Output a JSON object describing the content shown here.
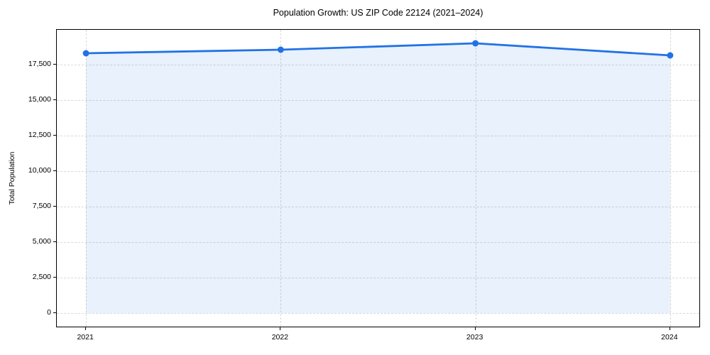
{
  "figure": {
    "title": "Population Growth: US ZIP Code 22124 (2021–2024)",
    "ylabel": "Total Population"
  },
  "chart_data": {
    "type": "line",
    "title": "Population Growth: US ZIP Code 22124 (2021–2024)",
    "xlabel": "",
    "ylabel": "Total Population",
    "categories": [
      "2021",
      "2022",
      "2023",
      "2024"
    ],
    "x": [
      2021,
      2022,
      2023,
      2024
    ],
    "series": [
      {
        "name": "Total Population",
        "values": [
          18300,
          18550,
          19000,
          18150
        ]
      }
    ],
    "markers": "circle",
    "area_fill": true,
    "fill_baseline": 0,
    "grid": true,
    "grid_style": "dashed",
    "legend": false,
    "xlim": [
      2020.85,
      2024.15
    ],
    "ylim": [
      -950,
      19950
    ],
    "yticks": [
      0,
      2500,
      5000,
      7500,
      10000,
      12500,
      15000,
      17500
    ],
    "ytick_labels": [
      "0",
      "2,500",
      "5,000",
      "7,500",
      "10,000",
      "12,500",
      "15,000",
      "17,500"
    ],
    "colors": {
      "line": "#2272e5",
      "marker": "#2272e5",
      "fill": "rgba(34,114,229,0.10)",
      "grid": "#d9d9d9",
      "axis": "#000000",
      "background": "#ffffff"
    }
  }
}
